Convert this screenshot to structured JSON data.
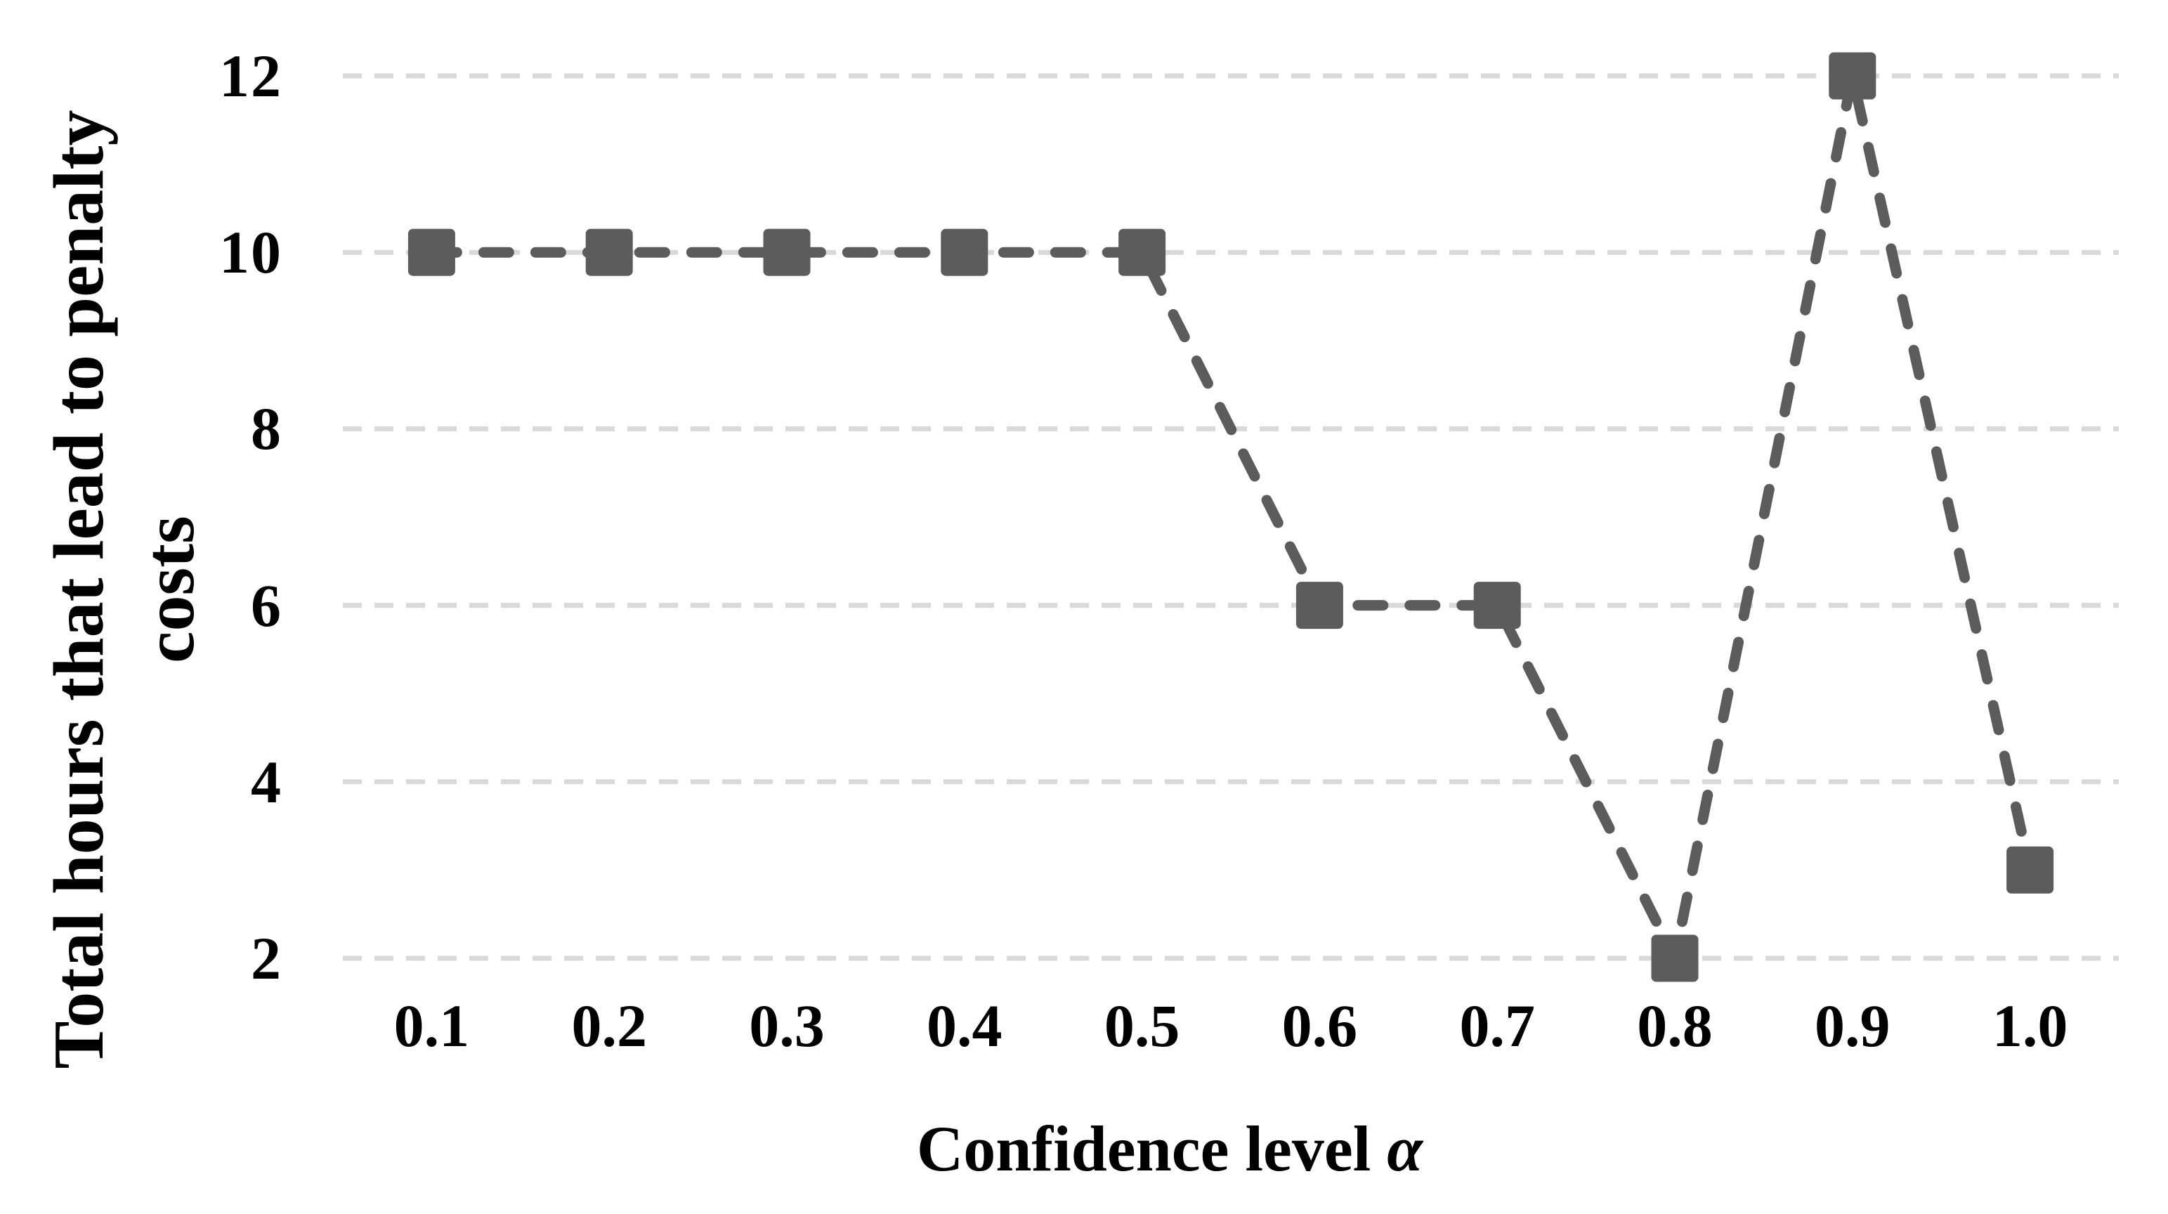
{
  "chart_data": {
    "type": "line",
    "line_style": "dashed",
    "marker": "square",
    "legend": "none",
    "grid": "horizontal-dashed",
    "categories": [
      "0.1",
      "0.2",
      "0.3",
      "0.4",
      "0.5",
      "0.6",
      "0.7",
      "0.8",
      "0.9",
      "1.0"
    ],
    "x": [
      0.1,
      0.2,
      0.3,
      0.4,
      0.5,
      0.6,
      0.7,
      0.8,
      0.9,
      1.0
    ],
    "values": [
      10,
      10,
      10,
      10,
      10,
      6,
      6,
      2,
      12,
      3
    ],
    "xlabel": "Confidence level α",
    "xlabel_prefix": "Confidence level ",
    "xlabel_symbol": "α",
    "ylabel_line1": "Total hours that lead to penalty",
    "ylabel_line2": "costs",
    "y_ticks": [
      2,
      4,
      6,
      8,
      10,
      12
    ],
    "y_tick_step": 2,
    "colors": {
      "series": "#5c5c5c",
      "gridline": "#d9d9d9",
      "text": "#000000",
      "background": "#ffffff"
    }
  }
}
